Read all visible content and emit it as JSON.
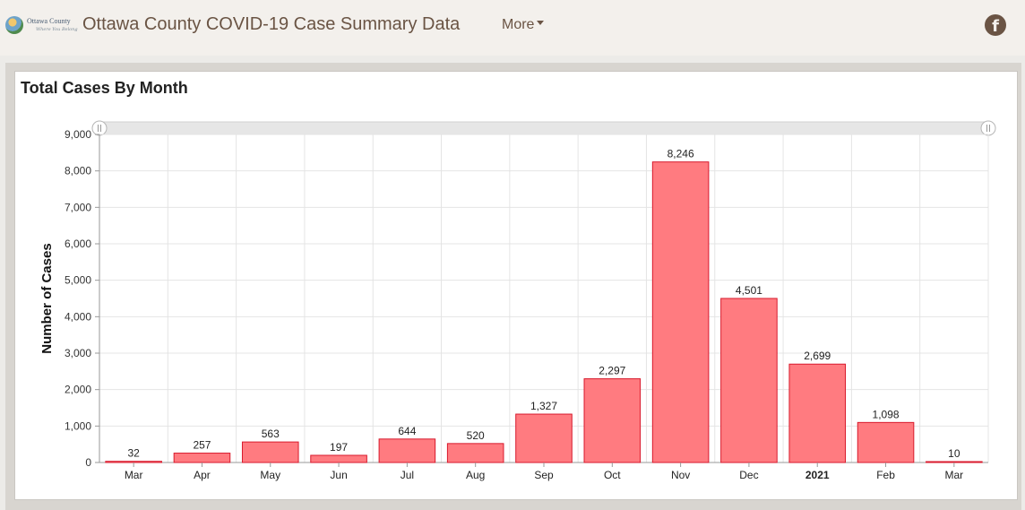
{
  "header": {
    "logo_text": "Ottawa County",
    "logo_tagline": "Where You Belong",
    "title": "Ottawa County COVID-19 Case Summary Data",
    "more_label": "More",
    "social_icon": "facebook-icon"
  },
  "card": {
    "title": "Total Cases By Month"
  },
  "chart_data": {
    "type": "bar",
    "title": "Total Cases By Month",
    "ylabel": "Number of Cases",
    "xlabel": "",
    "ylim": [
      0,
      9000
    ],
    "y_ticks": [
      "0",
      "1,000",
      "2,000",
      "3,000",
      "4,000",
      "5,000",
      "6,000",
      "7,000",
      "8,000",
      "9,000"
    ],
    "categories": [
      "Mar",
      "Apr",
      "May",
      "Jun",
      "Jul",
      "Aug",
      "Sep",
      "Oct",
      "Nov",
      "Dec",
      "2021",
      "Feb",
      "Mar"
    ],
    "values": [
      32,
      257,
      563,
      197,
      644,
      520,
      1327,
      2297,
      8246,
      4501,
      2699,
      1098,
      10
    ],
    "value_labels": [
      "32",
      "257",
      "563",
      "197",
      "644",
      "520",
      "1,327",
      "2,297",
      "8,246",
      "4,501",
      "2,699",
      "1,098",
      "10"
    ],
    "bold_categories": [
      "2021"
    ],
    "bar_color": "#ff7b80",
    "bar_stroke": "#d81a2c",
    "grid": true,
    "legend": "none"
  }
}
